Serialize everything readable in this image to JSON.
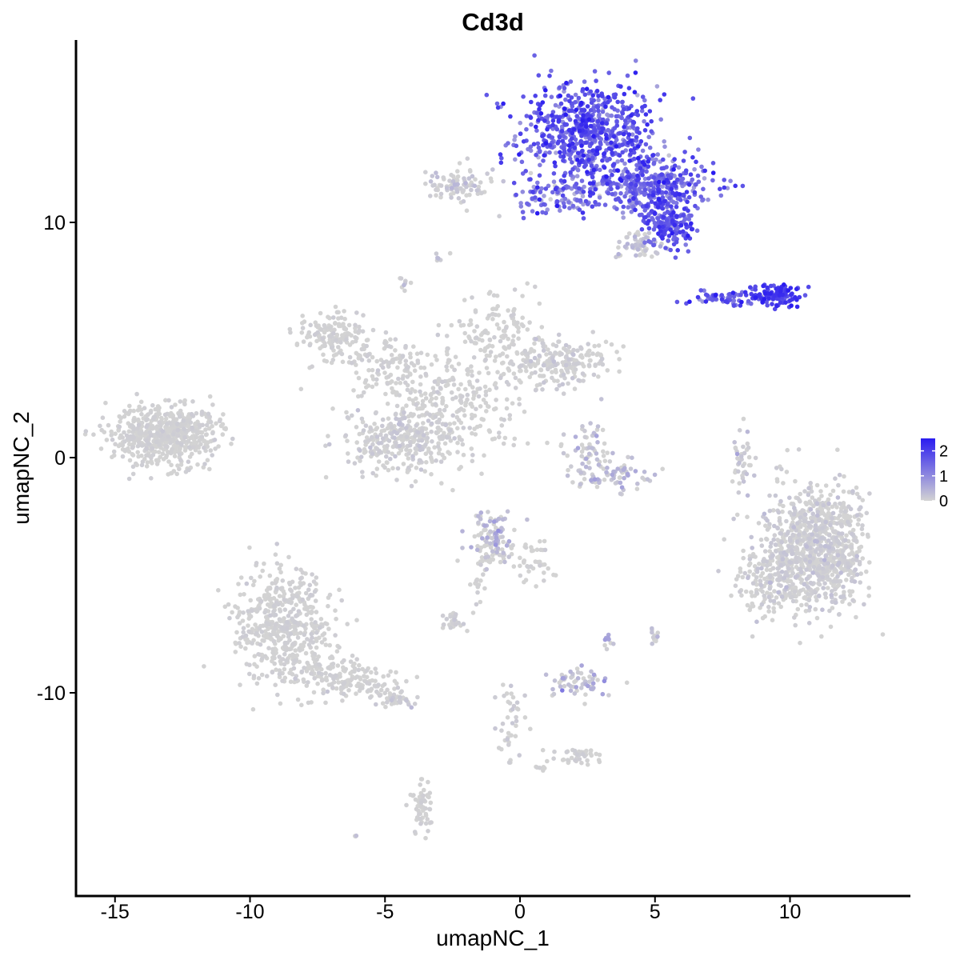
{
  "chart_data": {
    "type": "scatter",
    "title": "Cd3d",
    "xlabel": "umapNC_1",
    "ylabel": "umapNC_2",
    "xlim": [
      -16.5,
      14.5
    ],
    "ylim": [
      -18.5,
      18.5
    ],
    "x_ticks": [
      -15,
      -10,
      -5,
      0,
      5,
      10
    ],
    "x_tick_labels": [
      "-15",
      "-10",
      "-5",
      "0",
      "5",
      "10"
    ],
    "y_ticks": [
      -10,
      0,
      10
    ],
    "y_tick_labels": [
      "-10",
      "0",
      "10"
    ],
    "grid": false,
    "legend_position": "right",
    "color_scale": {
      "low_color": "#d3d3d3",
      "high_color": "#2a1cf0",
      "min": 0,
      "max": 2.5,
      "breaks": [
        0,
        1,
        2
      ],
      "break_labels": [
        "0",
        "1",
        "2"
      ]
    },
    "clusters": [
      {
        "cx": 2.5,
        "cy": 13.8,
        "sx": 1.3,
        "sy": 1.1,
        "n": 700,
        "expr": 1.6,
        "expr_sd": 0.45
      },
      {
        "cx": 4.8,
        "cy": 11.6,
        "sx": 1.2,
        "sy": 0.6,
        "n": 380,
        "expr": 1.5,
        "expr_sd": 0.45
      },
      {
        "cx": 5.5,
        "cy": 10.0,
        "sx": 0.5,
        "sy": 0.5,
        "n": 160,
        "expr": 1.7,
        "expr_sd": 0.35
      },
      {
        "cx": 1.2,
        "cy": 11.1,
        "sx": 0.9,
        "sy": 0.35,
        "n": 90,
        "expr": 1.2,
        "expr_sd": 0.5
      },
      {
        "cx": 4.5,
        "cy": 9.1,
        "sx": 0.5,
        "sy": 0.35,
        "n": 60,
        "expr": 0.1,
        "expr_sd": 0.2
      },
      {
        "cx": 9.5,
        "cy": 6.9,
        "sx": 0.5,
        "sy": 0.25,
        "n": 120,
        "expr": 2.0,
        "expr_sd": 0.3
      },
      {
        "cx": 7.6,
        "cy": 6.8,
        "sx": 0.7,
        "sy": 0.15,
        "n": 60,
        "expr": 1.5,
        "expr_sd": 0.4
      },
      {
        "cx": -2.2,
        "cy": 11.5,
        "sx": 0.6,
        "sy": 0.4,
        "n": 90,
        "expr": 0.05,
        "expr_sd": 0.15
      },
      {
        "cx": -13.3,
        "cy": 0.9,
        "sx": 1.0,
        "sy": 0.6,
        "n": 550,
        "expr": 0.0,
        "expr_sd": 0.05
      },
      {
        "cx": -12.0,
        "cy": 1.3,
        "sx": 0.6,
        "sy": 0.4,
        "n": 60,
        "expr": 0.0,
        "expr_sd": 0.05
      },
      {
        "cx": -6.8,
        "cy": 5.2,
        "sx": 0.7,
        "sy": 0.5,
        "n": 150,
        "expr": 0.0,
        "expr_sd": 0.05
      },
      {
        "cx": -4.5,
        "cy": 3.8,
        "sx": 1.0,
        "sy": 0.6,
        "n": 120,
        "expr": 0.0,
        "expr_sd": 0.05
      },
      {
        "cx": -2.3,
        "cy": 2.3,
        "sx": 1.2,
        "sy": 1.2,
        "n": 220,
        "expr": 0.0,
        "expr_sd": 0.05
      },
      {
        "cx": -4.4,
        "cy": 0.8,
        "sx": 1.0,
        "sy": 0.8,
        "n": 320,
        "expr": 0.02,
        "expr_sd": 0.1
      },
      {
        "cx": -0.8,
        "cy": 5.2,
        "sx": 0.8,
        "sy": 0.8,
        "n": 130,
        "expr": 0.0,
        "expr_sd": 0.05
      },
      {
        "cx": 1.5,
        "cy": 4.1,
        "sx": 1.0,
        "sy": 0.5,
        "n": 200,
        "expr": 0.02,
        "expr_sd": 0.1
      },
      {
        "cx": 2.5,
        "cy": 0.3,
        "sx": 0.4,
        "sy": 0.5,
        "n": 50,
        "expr": 0.1,
        "expr_sd": 0.2
      },
      {
        "cx": 3.3,
        "cy": -0.7,
        "sx": 0.7,
        "sy": 0.3,
        "n": 80,
        "expr": 0.15,
        "expr_sd": 0.3
      },
      {
        "cx": 8.2,
        "cy": 0.0,
        "sx": 0.2,
        "sy": 0.8,
        "n": 40,
        "expr": 0.05,
        "expr_sd": 0.2
      },
      {
        "cx": 11.0,
        "cy": -3.8,
        "sx": 0.9,
        "sy": 1.3,
        "n": 900,
        "expr": 0.02,
        "expr_sd": 0.1
      },
      {
        "cx": 9.2,
        "cy": -5.0,
        "sx": 0.6,
        "sy": 0.8,
        "n": 180,
        "expr": 0.02,
        "expr_sd": 0.1
      },
      {
        "cx": -1.0,
        "cy": -3.6,
        "sx": 0.4,
        "sy": 0.5,
        "n": 120,
        "expr": 0.15,
        "expr_sd": 0.4
      },
      {
        "cx": 0.5,
        "cy": -4.5,
        "sx": 0.4,
        "sy": 0.5,
        "n": 40,
        "expr": 0.0,
        "expr_sd": 0.05
      },
      {
        "cx": -1.5,
        "cy": -5.5,
        "sx": 0.15,
        "sy": 0.6,
        "n": 20,
        "expr": 0.0,
        "expr_sd": 0.05
      },
      {
        "cx": -2.5,
        "cy": -6.9,
        "sx": 0.2,
        "sy": 0.2,
        "n": 30,
        "expr": 0.0,
        "expr_sd": 0.1
      },
      {
        "cx": -8.8,
        "cy": -7.0,
        "sx": 0.9,
        "sy": 1.2,
        "n": 500,
        "expr": 0.01,
        "expr_sd": 0.05
      },
      {
        "cx": -7.5,
        "cy": -9.0,
        "sx": 0.8,
        "sy": 0.4,
        "n": 80,
        "expr": 0.0,
        "expr_sd": 0.05
      },
      {
        "cx": -6.0,
        "cy": -9.6,
        "sx": 0.9,
        "sy": 0.3,
        "n": 110,
        "expr": 0.0,
        "expr_sd": 0.05
      },
      {
        "cx": -4.6,
        "cy": -10.3,
        "sx": 0.4,
        "sy": 0.15,
        "n": 40,
        "expr": 0.02,
        "expr_sd": 0.1
      },
      {
        "cx": 2.3,
        "cy": -9.6,
        "sx": 0.6,
        "sy": 0.3,
        "n": 60,
        "expr": 0.2,
        "expr_sd": 0.35
      },
      {
        "cx": 2.0,
        "cy": -12.7,
        "sx": 0.5,
        "sy": 0.15,
        "n": 40,
        "expr": 0.0,
        "expr_sd": 0.05
      },
      {
        "cx": -0.3,
        "cy": -11.0,
        "sx": 0.25,
        "sy": 1.0,
        "n": 40,
        "expr": 0.02,
        "expr_sd": 0.1
      },
      {
        "cx": -3.6,
        "cy": -14.8,
        "sx": 0.2,
        "sy": 0.6,
        "n": 60,
        "expr": 0.0,
        "expr_sd": 0.05
      },
      {
        "cx": 5.0,
        "cy": -7.5,
        "sx": 0.1,
        "sy": 0.2,
        "n": 12,
        "expr": 0.1,
        "expr_sd": 0.2
      },
      {
        "cx": 3.3,
        "cy": -7.8,
        "sx": 0.1,
        "sy": 0.2,
        "n": 10,
        "expr": 0.2,
        "expr_sd": 0.3
      },
      {
        "cx": -2.9,
        "cy": 8.6,
        "sx": 0.1,
        "sy": 0.1,
        "n": 6,
        "expr": 0.1,
        "expr_sd": 0.2
      },
      {
        "cx": -4.3,
        "cy": 7.5,
        "sx": 0.1,
        "sy": 0.15,
        "n": 8,
        "expr": 0.1,
        "expr_sd": 0.3
      },
      {
        "cx": 0.6,
        "cy": -13.2,
        "sx": 0.2,
        "sy": 0.1,
        "n": 6,
        "expr": 0.0,
        "expr_sd": 0.05
      },
      {
        "cx": -6.1,
        "cy": -16.1,
        "sx": 0.05,
        "sy": 0.05,
        "n": 3,
        "expr": 0.2,
        "expr_sd": 0.3
      }
    ]
  }
}
